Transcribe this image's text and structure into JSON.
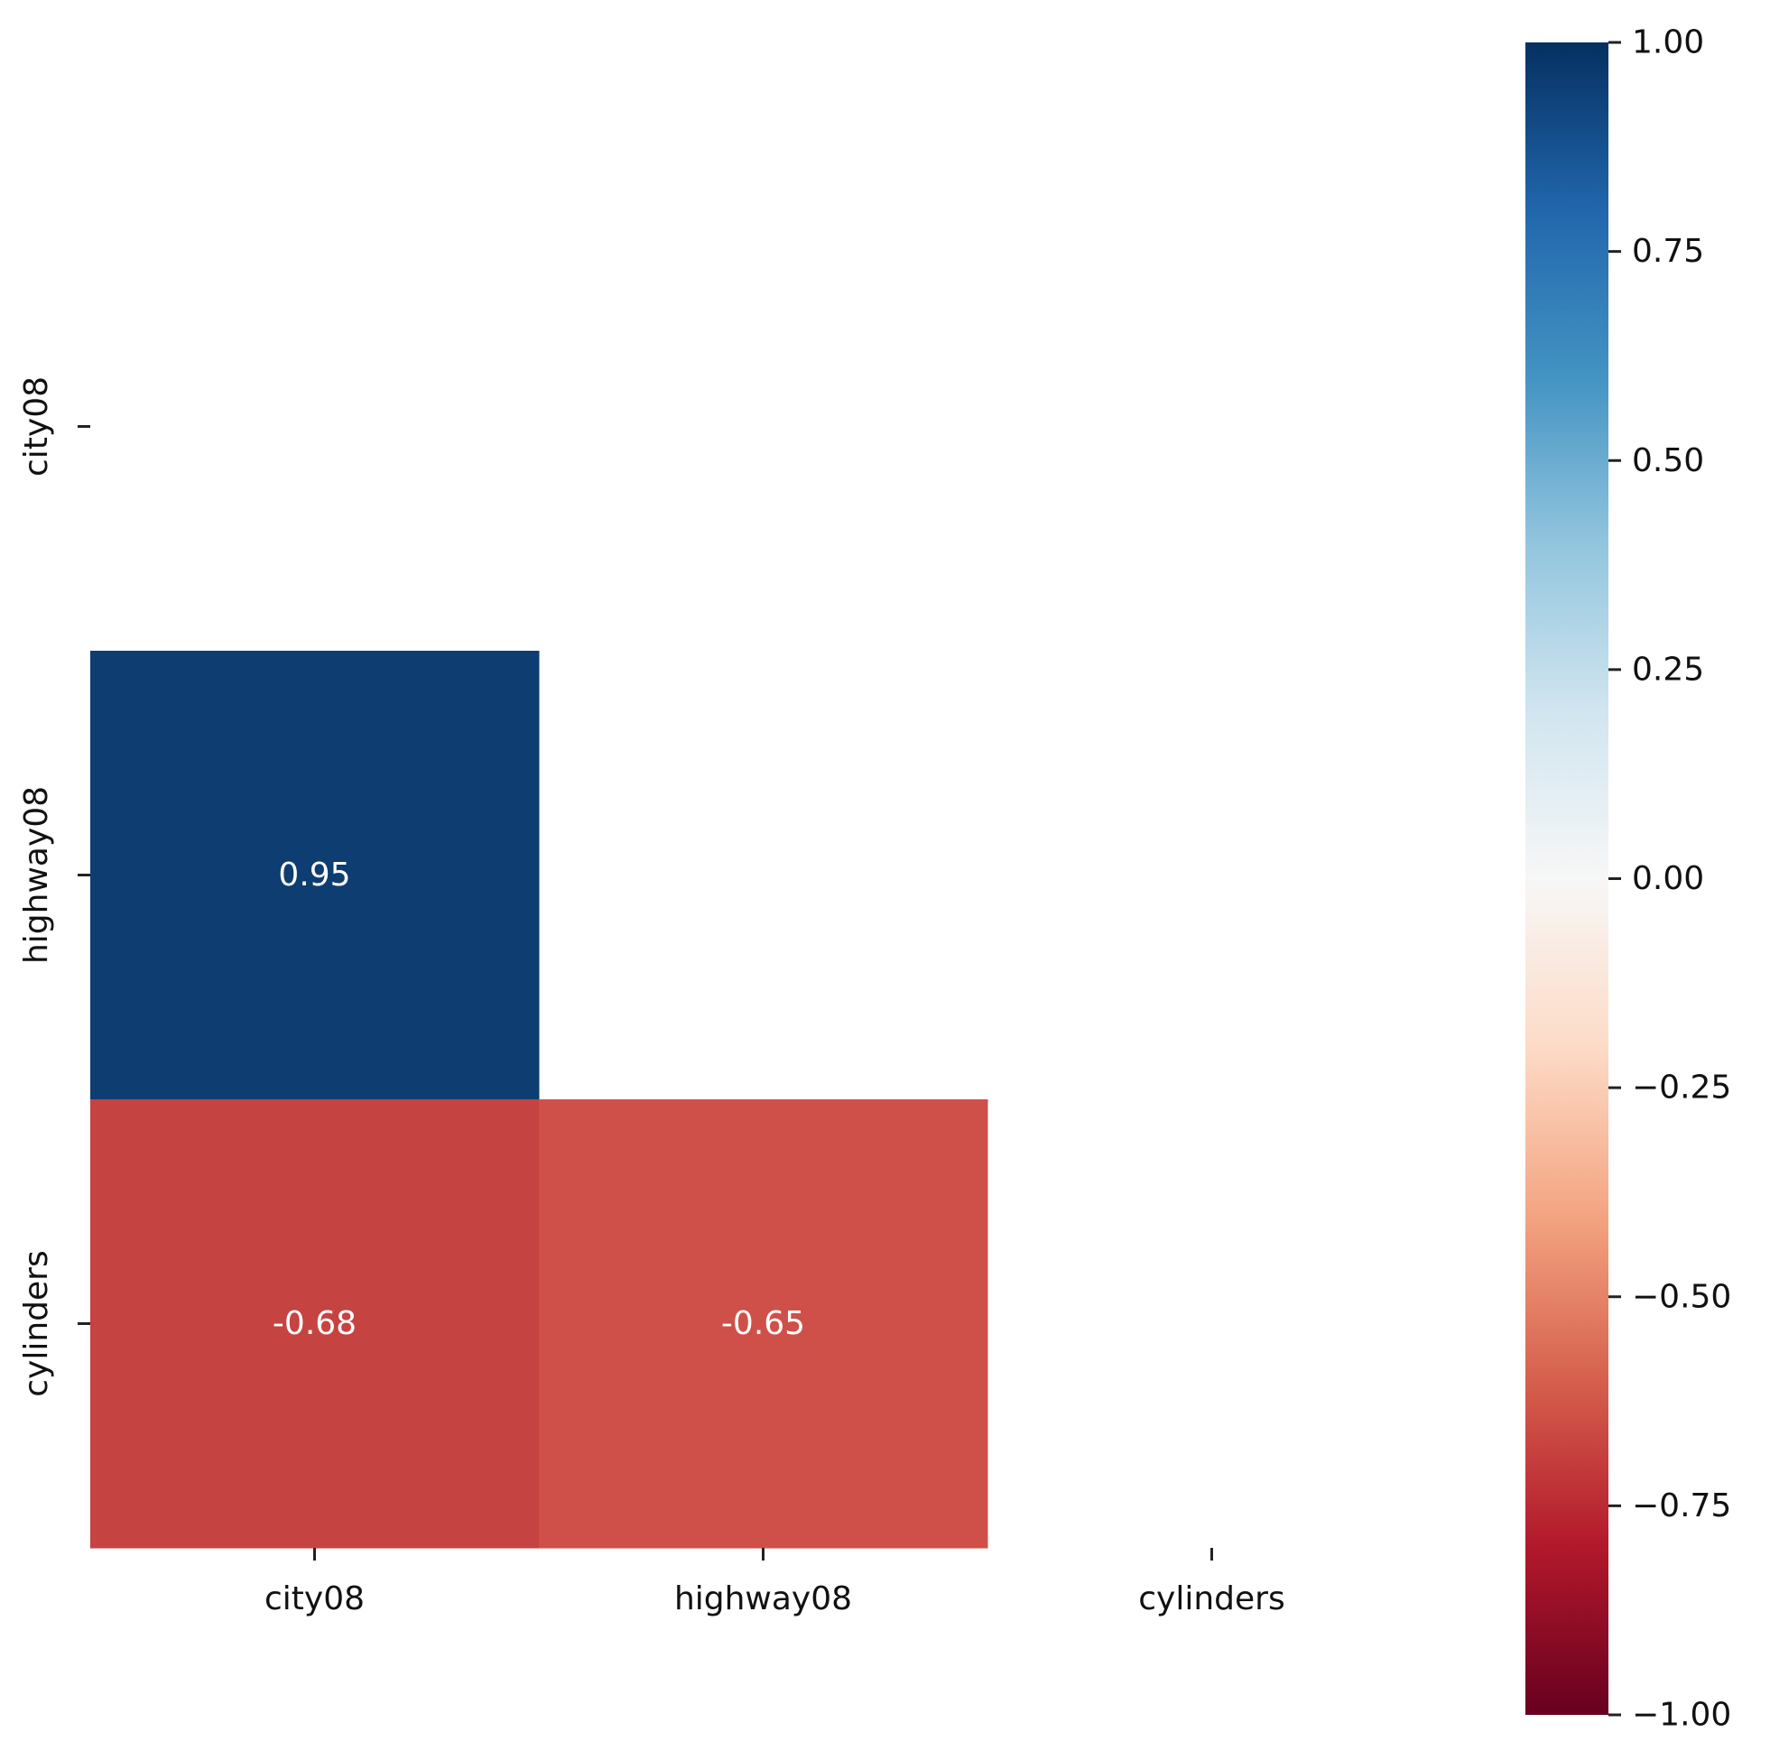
{
  "chart_data": {
    "type": "heatmap",
    "variables": [
      "city08",
      "highway08",
      "cylinders"
    ],
    "x_tick_labels": [
      "city08",
      "highway08",
      "cylinders"
    ],
    "y_tick_labels": [
      "city08",
      "highway08",
      "cylinders"
    ],
    "mask": "upper triangle including diagonal",
    "cells": [
      {
        "row": "highway08",
        "col": "city08",
        "value": 0.95,
        "label": "0.95"
      },
      {
        "row": "cylinders",
        "col": "city08",
        "value": -0.68,
        "label": "-0.68"
      },
      {
        "row": "cylinders",
        "col": "highway08",
        "value": -0.65,
        "label": "-0.65"
      }
    ],
    "colormap": "RdBu",
    "vmin": -1.0,
    "vmax": 1.0,
    "colorbar": {
      "position": "right",
      "ticks": [
        1.0,
        0.75,
        0.5,
        0.25,
        0.0,
        -0.25,
        -0.5,
        -0.75,
        -1.0
      ],
      "tick_labels": [
        "1.00",
        "0.75",
        "0.50",
        "0.25",
        "0.00",
        "−0.25",
        "−0.50",
        "−0.75",
        "−1.00"
      ]
    },
    "colors": {
      "0.95": "#0e3d71",
      "-0.68": "#c54341",
      "-0.65": "#cf5048"
    }
  }
}
